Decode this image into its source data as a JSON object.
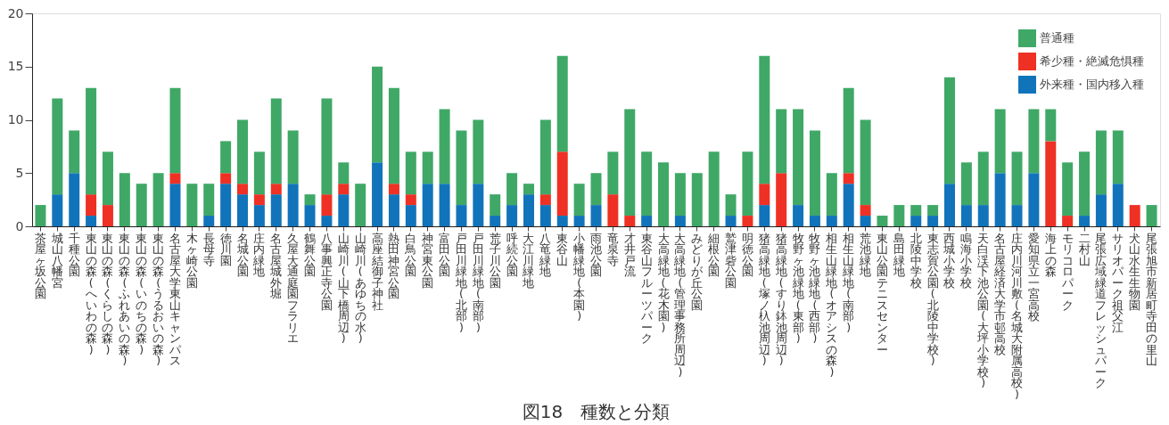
{
  "chart_data": {
    "type": "bar",
    "title": "図18　種数と分類",
    "stacked": true,
    "legend": "top right",
    "grid": false,
    "categories": [
      "茶屋ヶ坂公園",
      "城山八幡宮",
      "千種公園",
      "東山の森(へいわの森)",
      "東山の森(くらしの森)",
      "東山の森(ふれあいの森)",
      "東山の森(いのちの森)",
      "東山の森(うるおいの森)",
      "名古屋大学東山キャンパス",
      "木ヶ崎公園",
      "長母寺",
      "徳川園",
      "名城公園",
      "庄内緑地",
      "名古屋城外堀",
      "久屋大通庭園フラリエ",
      "鶴舞公園",
      "八事興正寺公園",
      "山崎川(山下橋周辺)",
      "山崎川(あゆちの水)",
      "高座結御子神社",
      "熱田神宮公園",
      "白鳥公園",
      "神宮東公園",
      "富田公園",
      "戸田川緑地(北部)",
      "戸田川緑地(南部)",
      "荒子川公園",
      "呼続公園",
      "大江川緑地",
      "八竜緑地",
      "東谷山",
      "小幡緑地(本園)",
      "雨池公園",
      "竜泉寺",
      "才井戸流",
      "東谷山フルーツパーク",
      "大高緑地(花木園)",
      "大高緑地(管理事務所周辺)",
      "みどりが丘公園",
      "細根公園",
      "鷲津砦公園",
      "明徳公園",
      "猪高緑地(塚ノ杁池周辺)",
      "猪高緑地(すり鉢池周辺)",
      "牧野ヶ池緑地(東部)",
      "牧野ヶ池緑地(西部)",
      "相生山緑地(オアシスの森)",
      "相生山緑地(南部)",
      "荒池緑地",
      "東山公園テニスセンター",
      "島田緑地",
      "北陵中学校",
      "東志賀公園(北陵中学校)",
      "西城小学校",
      "鳴海小学校",
      "天白渓下池公園(大坪小学校)",
      "名古屋経済大学市邨高校",
      "庄内川河川敷(名城大附属高校)",
      "愛知県立一宮高校",
      "海上の森",
      "モリコロパーク",
      "二村山",
      "尾張広域緑道フレッシュパーク",
      "サリオパーク祖父江",
      "犬山水生生物園",
      "尾張旭市新居町寺田の里山"
    ],
    "series": [
      {
        "name": "外来種・国内移入種",
        "color": "#1174bb",
        "values": [
          0,
          3,
          5,
          1,
          0,
          0,
          0,
          0,
          4,
          0,
          1,
          4,
          3,
          2,
          3,
          4,
          2,
          1,
          3,
          0,
          6,
          3,
          2,
          4,
          4,
          2,
          4,
          1,
          2,
          3,
          2,
          1,
          1,
          2,
          0,
          0,
          1,
          0,
          1,
          0,
          0,
          1,
          0,
          2,
          0,
          2,
          1,
          1,
          4,
          1,
          0,
          0,
          1,
          1,
          4,
          2,
          2,
          5,
          2,
          5,
          0,
          0,
          1,
          3,
          4,
          0,
          0
        ]
      },
      {
        "name": "希少種・絶滅危惧種",
        "color": "#ee3124",
        "values": [
          0,
          0,
          0,
          2,
          2,
          0,
          0,
          0,
          1,
          0,
          0,
          1,
          1,
          1,
          1,
          0,
          0,
          2,
          1,
          0,
          0,
          1,
          1,
          0,
          0,
          0,
          0,
          0,
          0,
          0,
          1,
          6,
          0,
          0,
          3,
          1,
          0,
          0,
          0,
          0,
          0,
          0,
          1,
          2,
          5,
          0,
          0,
          0,
          1,
          1,
          0,
          0,
          0,
          0,
          0,
          0,
          0,
          0,
          0,
          0,
          8,
          1,
          0,
          0,
          0,
          2,
          0
        ]
      },
      {
        "name": "普通種",
        "color": "#3fa866",
        "values": [
          2,
          9,
          4,
          10,
          5,
          5,
          4,
          5,
          8,
          4,
          3,
          3,
          6,
          4,
          8,
          5,
          1,
          9,
          2,
          4,
          9,
          9,
          4,
          3,
          7,
          7,
          6,
          2,
          3,
          1,
          7,
          9,
          3,
          3,
          4,
          10,
          6,
          6,
          4,
          5,
          7,
          2,
          6,
          12,
          6,
          9,
          8,
          4,
          8,
          8,
          1,
          2,
          1,
          1,
          10,
          4,
          5,
          6,
          5,
          6,
          3,
          5,
          6,
          6,
          5,
          0,
          2
        ]
      }
    ],
    "ylim": [
      0,
      20
    ],
    "yticks": [
      0,
      5,
      10,
      15,
      20
    ]
  }
}
